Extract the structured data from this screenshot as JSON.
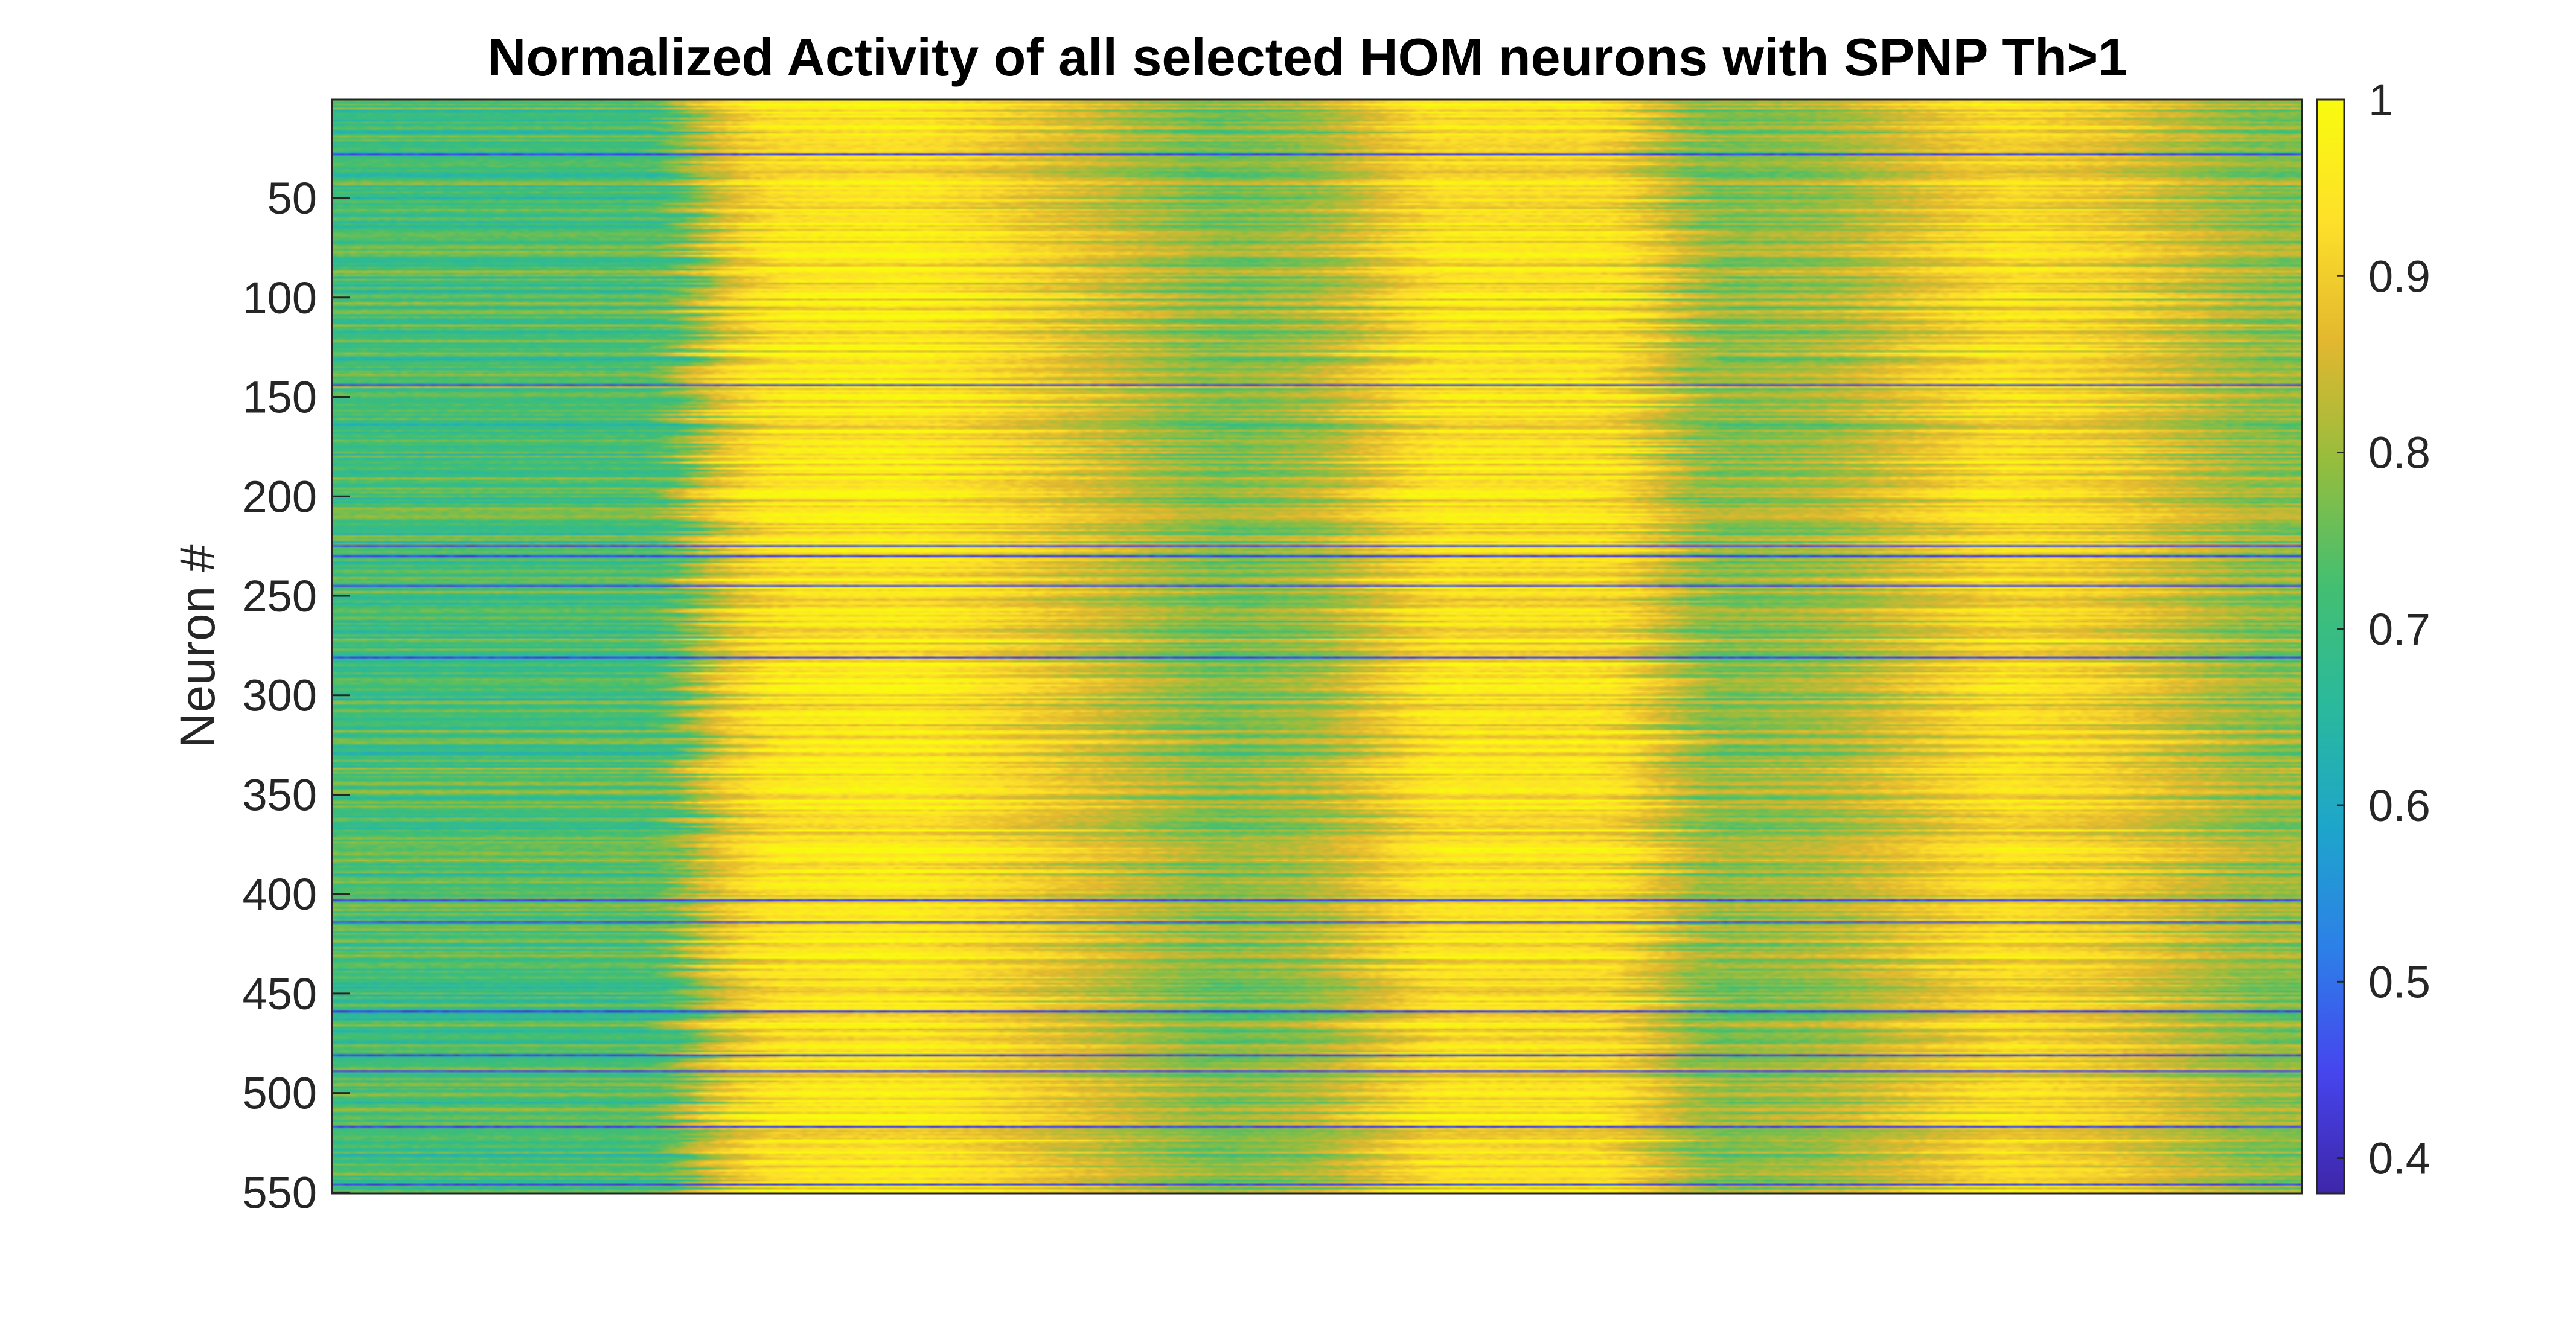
{
  "chart_data": {
    "type": "heatmap",
    "title": "Normalized Activity of all selected HOM neurons with SPNP Th>1",
    "ylabel": "Neuron #",
    "xlabel": "",
    "ylim": [
      1,
      550
    ],
    "y_ticks": [
      "50",
      "100",
      "150",
      "200",
      "250",
      "300",
      "350",
      "400",
      "450",
      "500",
      "550"
    ],
    "x_tick_labels_shown": false,
    "colormap": "parula",
    "colorbar": {
      "range": [
        0.38,
        1.0
      ],
      "ticks": [
        "0.4",
        "0.5",
        "0.6",
        "0.7",
        "0.8",
        "0.9",
        "1"
      ],
      "colors": [
        "#3e26a8",
        "#4645ee",
        "#2d7fe8",
        "#1ea5cb",
        "#2ab99d",
        "#43bf71",
        "#94bd3e",
        "#e2b72f",
        "#fee02a",
        "#f9fb0e"
      ]
    },
    "rows": 550,
    "columns": 340,
    "column_profile": {
      "x": [
        0,
        0.17,
        0.19,
        0.22,
        0.29,
        0.33,
        0.45,
        0.5,
        0.56,
        0.65,
        0.7,
        0.76,
        0.85,
        0.9,
        0.98
      ],
      "value": [
        0.7,
        0.71,
        0.85,
        0.95,
        0.97,
        0.93,
        0.76,
        0.8,
        0.95,
        0.94,
        0.77,
        0.8,
        0.94,
        0.9,
        0.78
      ]
    }
  }
}
